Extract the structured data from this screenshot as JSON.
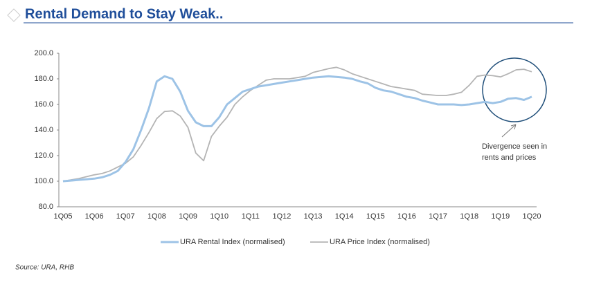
{
  "header": {
    "title": "Rental Demand to Stay Weak.."
  },
  "chart_data": {
    "type": "line",
    "categories": [
      "1Q05",
      null,
      null,
      null,
      "1Q06",
      null,
      null,
      null,
      "1Q07",
      null,
      null,
      null,
      "1Q08",
      null,
      null,
      null,
      "1Q09",
      null,
      null,
      null,
      "1Q10",
      null,
      null,
      null,
      "1Q11",
      null,
      null,
      null,
      "1Q12",
      null,
      null,
      null,
      "1Q13",
      null,
      null,
      null,
      "1Q14",
      null,
      null,
      null,
      "1Q15",
      null,
      null,
      null,
      "1Q16",
      null,
      null,
      null,
      "1Q17",
      null,
      null,
      null,
      "1Q18",
      null,
      null,
      null,
      "1Q19",
      null,
      null,
      null,
      "1Q20"
    ],
    "series": [
      {
        "name": "URA Rental Index (normalised)",
        "color": "#9dc3e6",
        "values": [
          100,
          100.5,
          101,
          101.5,
          102,
          103,
          105,
          108,
          115,
          125,
          140,
          157,
          178,
          182,
          180,
          170,
          155,
          146,
          143,
          143,
          150,
          160,
          165,
          170,
          172,
          174,
          175,
          176,
          177,
          178,
          179,
          180,
          181,
          181.5,
          182,
          181.5,
          181,
          180,
          178,
          176.5,
          173,
          171,
          170,
          168,
          166,
          165,
          163,
          161.5,
          160,
          160,
          160,
          159.5,
          160,
          161,
          162,
          161,
          162,
          164.5,
          165,
          163.5,
          166
        ]
      },
      {
        "name": "URA Price Index (normalised)",
        "color": "#b4b4b4",
        "values": [
          100,
          101,
          102,
          103.5,
          105,
          106,
          108,
          111,
          114,
          119,
          128,
          138,
          149,
          154.5,
          155,
          151,
          142,
          122,
          116,
          135,
          143,
          150,
          160,
          166,
          171,
          175,
          179,
          180,
          180,
          180,
          181,
          182,
          185,
          186.5,
          188,
          189,
          187,
          184,
          182,
          180,
          178,
          176,
          174,
          173,
          172,
          171,
          168,
          167.5,
          167,
          167,
          168,
          169.5,
          175,
          182,
          183,
          182.5,
          181.5,
          184,
          187,
          187.5,
          185.5
        ]
      }
    ],
    "ylim": [
      80,
      200
    ],
    "yticks": [
      {
        "value": 80,
        "label": "80.0"
      },
      {
        "value": 100,
        "label": "100.0"
      },
      {
        "value": 120,
        "label": "120.0"
      },
      {
        "value": 140,
        "label": "140.0"
      },
      {
        "value": 160,
        "label": "160.0"
      },
      {
        "value": 180,
        "label": "180.0"
      },
      {
        "value": 200,
        "label": "200.0"
      }
    ],
    "annotation": [
      "Divergence seen in",
      "rents and prices"
    ],
    "source": "Source: URA, RHB"
  }
}
